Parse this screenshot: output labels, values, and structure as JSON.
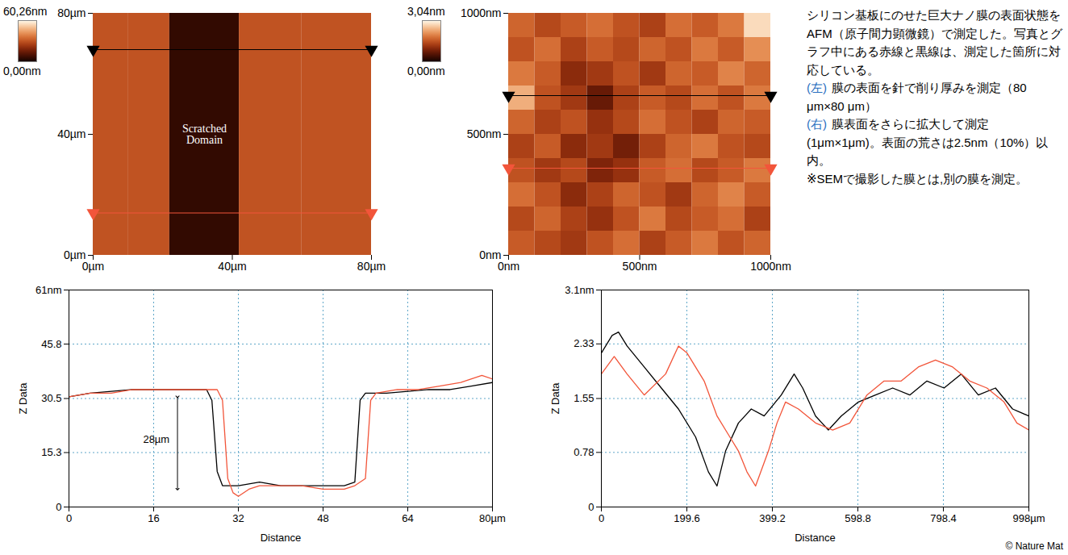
{
  "chart_data": [
    {
      "type": "heatmap",
      "xlim": [
        0,
        80
      ],
      "ylim": [
        0,
        80
      ],
      "xticks": [
        {
          "value": 0,
          "label": "0µm"
        },
        {
          "value": 40,
          "label": "40µm"
        },
        {
          "value": 80,
          "label": "80µm"
        }
      ],
      "yticks": [
        {
          "value": 0,
          "label": "0µm"
        },
        {
          "value": 40,
          "label": "40µm"
        },
        {
          "value": 80,
          "label": "80µm"
        }
      ],
      "x_edges": [
        0,
        10,
        22,
        42,
        60,
        80
      ],
      "y_edges": [
        0,
        80
      ],
      "values": [
        [
          30,
          30,
          5,
          30,
          30
        ]
      ],
      "colorbar": {
        "range": [
          0,
          60.26
        ],
        "ticks": [
          {
            "value": 60.26,
            "label": "60,26nm"
          },
          {
            "value": 0,
            "label": "0,00nm"
          }
        ]
      },
      "annotations": [
        {
          "text": "Scratched Domain",
          "x": 32,
          "y": 40
        }
      ],
      "profile_lines": [
        {
          "color": "#000000",
          "y": 68
        },
        {
          "color": "#f2553a",
          "y": 14
        }
      ]
    },
    {
      "type": "heatmap",
      "xlim": [
        0,
        1000
      ],
      "ylim": [
        0,
        1000
      ],
      "xticks": [
        {
          "value": 0,
          "label": "0nm"
        },
        {
          "value": 500,
          "label": "500nm"
        },
        {
          "value": 1000,
          "label": "1000nm"
        }
      ],
      "yticks": [
        {
          "value": 0,
          "label": "0nm"
        },
        {
          "value": 500,
          "label": "500nm"
        },
        {
          "value": 1000,
          "label": "1000nm"
        }
      ],
      "x_edges": [
        0,
        100,
        200,
        300,
        400,
        500,
        600,
        700,
        800,
        900,
        1000
      ],
      "y_edges": [
        0,
        100,
        200,
        300,
        400,
        500,
        600,
        700,
        800,
        900,
        1000
      ],
      "values": [
        [
          1.6,
          1.4,
          1.2,
          1.5,
          1.8,
          1.3,
          1.6,
          1.9,
          1.5,
          1.7
        ],
        [
          1.4,
          1.7,
          1.3,
          1.1,
          1.5,
          1.9,
          1.4,
          1.6,
          1.8,
          1.3
        ],
        [
          1.8,
          1.5,
          1.0,
          1.3,
          1.7,
          1.5,
          1.2,
          1.7,
          2.0,
          1.6
        ],
        [
          1.5,
          1.2,
          1.4,
          0.9,
          1.1,
          1.6,
          1.8,
          1.4,
          1.6,
          1.9
        ],
        [
          1.3,
          1.6,
          1.0,
          1.2,
          0.8,
          1.3,
          1.7,
          1.9,
          1.5,
          1.4
        ],
        [
          1.7,
          1.3,
          1.5,
          1.1,
          1.4,
          1.8,
          1.5,
          1.3,
          1.7,
          1.6
        ],
        [
          2.4,
          1.5,
          1.2,
          0.7,
          1.3,
          1.6,
          1.4,
          1.8,
          1.5,
          1.9
        ],
        [
          1.9,
          1.6,
          1.0,
          1.2,
          1.5,
          1.2,
          1.7,
          1.6,
          2.0,
          1.7
        ],
        [
          1.5,
          1.8,
          1.3,
          1.6,
          1.4,
          1.7,
          1.5,
          1.9,
          1.6,
          2.1
        ],
        [
          1.7,
          1.4,
          1.6,
          1.8,
          1.5,
          1.3,
          1.8,
          1.6,
          1.9,
          2.8
        ]
      ],
      "colorbar": {
        "range": [
          0,
          3.04
        ],
        "ticks": [
          {
            "value": 3.04,
            "label": "3,04nm"
          },
          {
            "value": 0,
            "label": "0,00nm"
          }
        ]
      },
      "profile_lines": [
        {
          "color": "#000000",
          "y": 660
        },
        {
          "color": "#f2553a",
          "y": 360
        }
      ]
    },
    {
      "type": "line",
      "x_label": "Distance",
      "y_label": "Z Data",
      "xlim": [
        0,
        80
      ],
      "ylim": [
        0,
        61
      ],
      "xticks": [
        0,
        16,
        32,
        48,
        64,
        {
          "value": 80,
          "label": "80µm"
        }
      ],
      "yticks": [
        0,
        15.3,
        30.5,
        45.8,
        {
          "value": 61,
          "label": "61nm"
        }
      ],
      "grid": true,
      "series": [
        {
          "color": "#000000",
          "x": [
            0,
            4,
            8,
            12,
            16,
            20,
            24,
            26,
            27,
            28,
            29,
            32,
            36,
            40,
            44,
            48,
            52,
            54,
            55,
            56,
            60,
            64,
            68,
            72,
            76,
            80
          ],
          "values": [
            31,
            32,
            32.5,
            33,
            33,
            33,
            33,
            33,
            30,
            10,
            6,
            6,
            7,
            6,
            6,
            6,
            6,
            7,
            30,
            32,
            32,
            32.5,
            33,
            33,
            34,
            35
          ]
        },
        {
          "color": "#f2553a",
          "x": [
            0,
            4,
            8,
            12,
            16,
            20,
            24,
            28,
            29,
            30,
            31,
            32,
            34,
            36,
            40,
            44,
            48,
            52,
            54,
            56,
            57,
            58,
            62,
            66,
            70,
            74,
            78,
            80
          ],
          "values": [
            31,
            32,
            32,
            33,
            33,
            33,
            33,
            33,
            30,
            8,
            4,
            3,
            5,
            6,
            6,
            6,
            5,
            5,
            6,
            8,
            30,
            32,
            33,
            33,
            34,
            35,
            37,
            36
          ]
        }
      ],
      "annotations": [
        {
          "text": "28µm",
          "x": 19,
          "y": 19,
          "arrow": {
            "x": 20.5,
            "y1": 31,
            "y2": 5
          }
        }
      ]
    },
    {
      "type": "line",
      "x_label": "Distance",
      "y_label": "Z Data",
      "xlim": [
        0,
        998
      ],
      "ylim": [
        0,
        3.1
      ],
      "xticks": [
        0,
        199.6,
        399.2,
        598.8,
        798.4,
        {
          "value": 998,
          "label": "998µm"
        }
      ],
      "yticks": [
        0,
        0.78,
        1.55,
        2.33,
        {
          "value": 3.1,
          "label": "3.1nm"
        }
      ],
      "grid": true,
      "series": [
        {
          "color": "#000000",
          "x": [
            0,
            25,
            40,
            60,
            100,
            140,
            180,
            220,
            250,
            270,
            290,
            320,
            350,
            380,
            420,
            450,
            470,
            500,
            530,
            560,
            600,
            640,
            680,
            720,
            760,
            800,
            840,
            880,
            920,
            960,
            998
          ],
          "values": [
            2.2,
            2.45,
            2.5,
            2.3,
            2.0,
            1.7,
            1.4,
            1.0,
            0.5,
            0.3,
            0.8,
            1.2,
            1.4,
            1.3,
            1.6,
            1.9,
            1.7,
            1.3,
            1.1,
            1.3,
            1.5,
            1.6,
            1.7,
            1.6,
            1.8,
            1.7,
            1.9,
            1.6,
            1.7,
            1.4,
            1.3
          ]
        },
        {
          "color": "#f2553a",
          "x": [
            0,
            30,
            60,
            100,
            150,
            180,
            200,
            240,
            270,
            300,
            320,
            340,
            360,
            390,
            410,
            430,
            460,
            500,
            540,
            580,
            620,
            660,
            700,
            740,
            780,
            820,
            860,
            900,
            940,
            970,
            998
          ],
          "values": [
            1.9,
            2.15,
            1.9,
            1.6,
            1.9,
            2.3,
            2.2,
            1.8,
            1.3,
            1.0,
            0.8,
            0.5,
            0.3,
            0.8,
            1.2,
            1.5,
            1.4,
            1.2,
            1.1,
            1.2,
            1.6,
            1.8,
            1.8,
            2.0,
            2.1,
            2.0,
            1.8,
            1.7,
            1.5,
            1.2,
            1.1
          ]
        }
      ]
    }
  ],
  "text": {
    "paragraph": "シリコン基板にのせた巨大ナノ膜の表面状態をAFM（原子間力顕微鏡）で測定した。写真とグラフ中にある赤線と黒線は、測定した箇所に対応している。",
    "items": [
      {
        "tag": "(左)",
        "text": "膜の表面を針で削り厚みを測定（80 μm×80 μm）"
      },
      {
        "tag": "(右)",
        "text": "膜表面をさらに拡大して測定(1μm×1μm)。表面の荒さは2.5nm（10%）以内。"
      }
    ],
    "note": "※SEMで撮影した膜とは,別の膜を測定。",
    "credit": "© Nature Mat"
  }
}
